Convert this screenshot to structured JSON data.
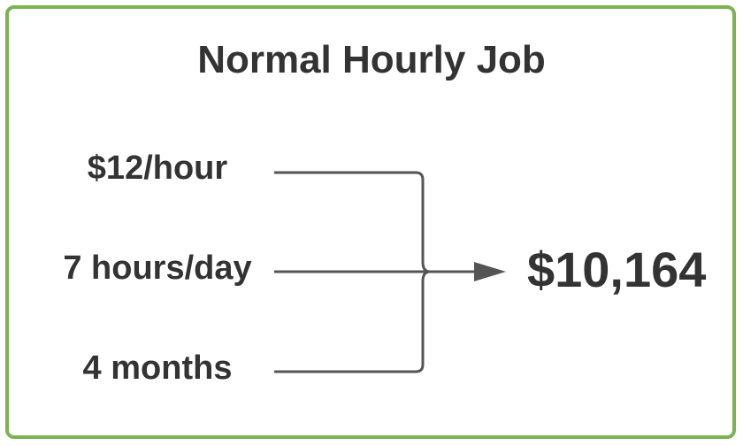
{
  "title": "Normal Hourly Job",
  "inputs": {
    "rate": "$12/hour",
    "hours": "7 hours/day",
    "duration": "4 months"
  },
  "result": "$10,164",
  "colors": {
    "border": "#7ab34f",
    "text": "#333333",
    "connector": "#555555"
  }
}
